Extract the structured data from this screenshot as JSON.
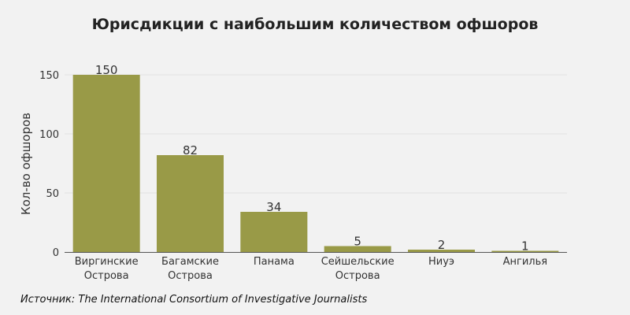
{
  "chart_data": {
    "type": "bar",
    "title": "Юрисдикции с наибольшим количеством офшоров",
    "xlabel": "",
    "ylabel": "Кол-во офшоров",
    "categories": [
      [
        "Виргинские",
        "Острова"
      ],
      [
        "Багамские",
        "Острова"
      ],
      [
        "Панама"
      ],
      [
        "Сейшельские",
        "Острова"
      ],
      [
        "Ниуэ"
      ],
      [
        "Ангилья"
      ]
    ],
    "values": [
      150,
      82,
      34,
      5,
      2,
      1
    ],
    "ylim": [
      0,
      150
    ],
    "yticks": [
      0,
      50,
      100,
      150
    ],
    "grid": true,
    "bar_color": "#999a47"
  },
  "source": "Источник: The International Consortium of Investigative Journalists"
}
